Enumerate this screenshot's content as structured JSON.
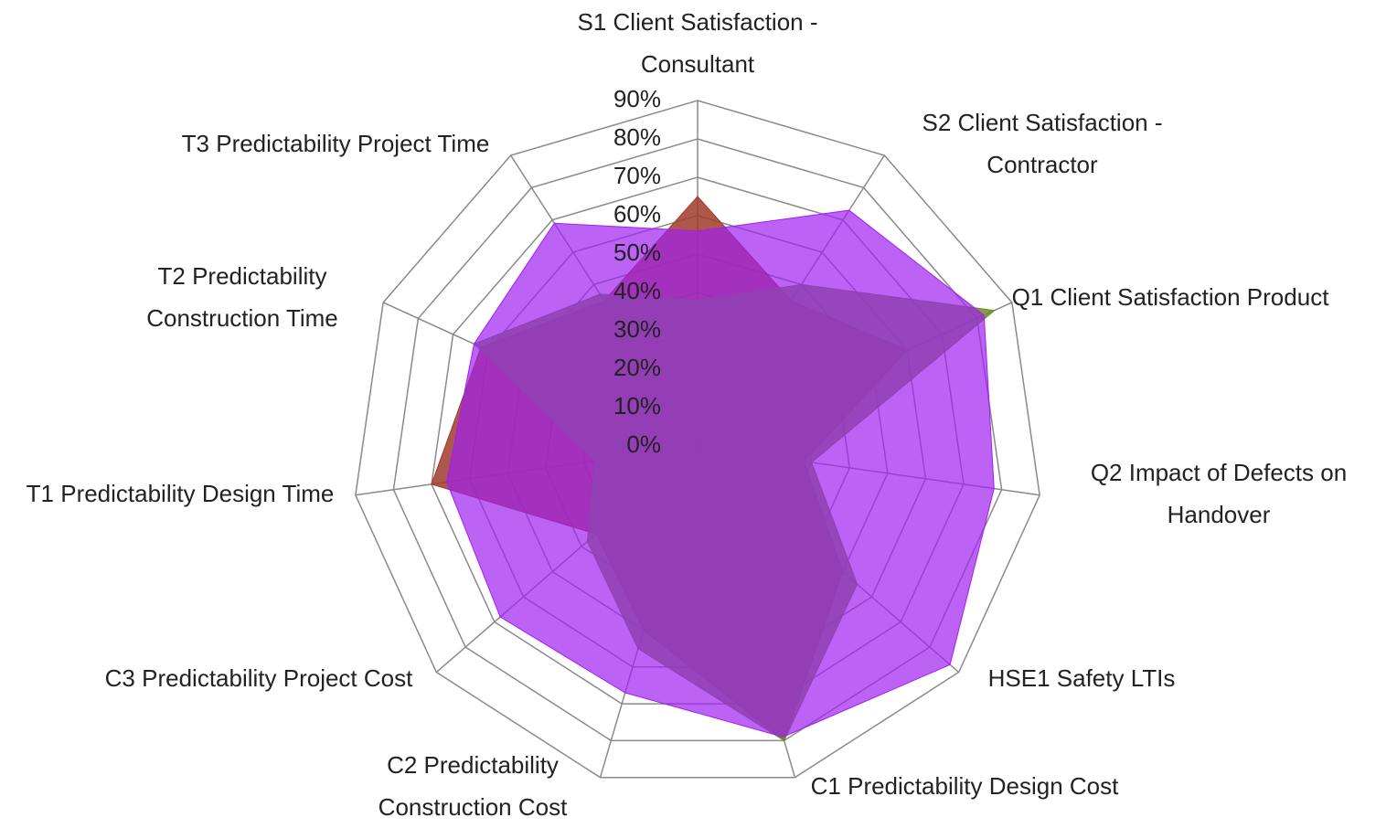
{
  "chart_data": {
    "type": "radar",
    "categories": [
      "S1 Client Satisfaction - Consultant",
      "S2 Client Satisfaction - Contractor",
      "Q1 Client Satisfaction Product",
      "Q2 Impact of Defects on Handover",
      "HSE1 Safety LTIs",
      "C1 Predictability Design Cost",
      "C2 Predictability Construction Cost",
      "C3 Predictability Project Cost",
      "T1 Predictability Design Time",
      "T2 Predictability Construction Time",
      "T3 Predictability Project Time"
    ],
    "series": [
      {
        "color": "#a0392c",
        "values": [
          65,
          45,
          60,
          28,
          50,
          80,
          50,
          35,
          70,
          62,
          45
        ]
      },
      {
        "color": "#6b8e23",
        "values": [
          38,
          50,
          85,
          30,
          55,
          80,
          55,
          38,
          27,
          64,
          47
        ]
      },
      {
        "color": "#a020f0",
        "values": [
          56,
          73,
          82,
          78,
          87,
          79,
          67,
          68,
          66,
          64,
          69
        ]
      }
    ],
    "rlim": [
      0,
      90
    ],
    "rticks": [
      {
        "value": 0,
        "label": "0%"
      },
      {
        "value": 10,
        "label": "10%"
      },
      {
        "value": 20,
        "label": "20%"
      },
      {
        "value": 30,
        "label": "30%"
      },
      {
        "value": 40,
        "label": "40%"
      },
      {
        "value": 50,
        "label": "50%"
      },
      {
        "value": 60,
        "label": "60%"
      },
      {
        "value": 70,
        "label": "70%"
      },
      {
        "value": 80,
        "label": "80%"
      },
      {
        "value": 90,
        "label": "90%"
      }
    ],
    "grid": true
  }
}
